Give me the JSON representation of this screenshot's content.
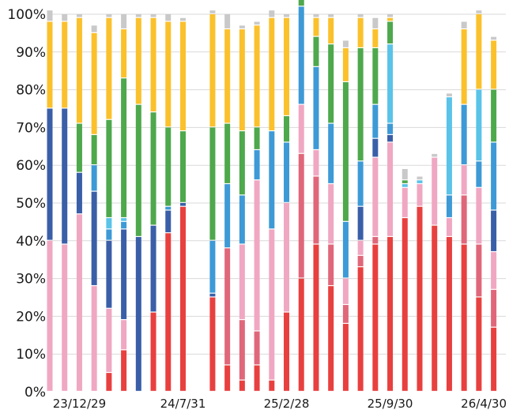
{
  "chart_data": {
    "type": "bar",
    "stacked": true,
    "normalized": true,
    "y_tick_labels": [
      "0%",
      "10%",
      "20%",
      "30%",
      "40%",
      "50%",
      "60%",
      "70%",
      "80%",
      "90%",
      "100%"
    ],
    "ylim": [
      0,
      100
    ],
    "x_tick_labels": [
      "23/12/29",
      "24/7/31",
      "25/2/28",
      "25/9/30",
      "26/4/30"
    ],
    "x_tick_bar_index": [
      2,
      9,
      16,
      23,
      30
    ],
    "grid": "horizontal",
    "legend": "none",
    "bar_count": 32,
    "series": [
      {
        "color": "#e8403f",
        "values": [
          0,
          0,
          0,
          0,
          5,
          11,
          0,
          21,
          42,
          49,
          0,
          25,
          7,
          3,
          7,
          3,
          21,
          30,
          39,
          28,
          18,
          33,
          39,
          41,
          46,
          49,
          44,
          41,
          39,
          25,
          17,
          0
        ]
      },
      {
        "color": "#e0677a",
        "values": [
          0,
          0,
          0,
          0,
          0,
          0,
          0,
          0,
          0,
          0,
          0,
          0,
          31,
          16,
          9,
          0,
          0,
          33,
          18,
          11,
          5,
          3,
          2,
          0,
          0,
          0,
          0,
          0,
          13,
          14,
          10,
          0
        ]
      },
      {
        "color": "#f0a7c2",
        "values": [
          40,
          39,
          47,
          28,
          17,
          8,
          0,
          0,
          0,
          0,
          0,
          0,
          0,
          20,
          40,
          40,
          29,
          13,
          7,
          16,
          7,
          4,
          21,
          25,
          8,
          6,
          18,
          5,
          8,
          15,
          10,
          0
        ]
      },
      {
        "color": "#3a5fa8",
        "values": [
          35,
          36,
          11,
          25,
          18,
          24,
          41,
          23,
          6,
          1,
          0,
          1,
          0,
          0,
          0,
          0,
          0,
          0,
          0,
          0,
          0,
          9,
          5,
          2,
          0,
          0,
          0,
          0,
          0,
          0,
          11,
          0
        ]
      },
      {
        "color": "#3d9ad6",
        "values": [
          0,
          0,
          0,
          7,
          3,
          2,
          0,
          0,
          1,
          0,
          0,
          14,
          17,
          13,
          8,
          26,
          16,
          26,
          22,
          16,
          15,
          12,
          9,
          3,
          0,
          0,
          0,
          6,
          16,
          7,
          18,
          0
        ]
      },
      {
        "color": "#5ac3e8",
        "values": [
          0,
          0,
          0,
          0,
          3,
          1,
          0,
          0,
          0,
          0,
          0,
          0,
          0,
          0,
          0,
          0,
          0,
          0,
          0,
          0,
          0,
          0,
          0,
          21,
          1,
          1,
          0,
          26,
          0,
          19,
          0,
          0
        ]
      },
      {
        "color": "#4ea84c",
        "values": [
          0,
          0,
          13,
          8,
          26,
          37,
          35,
          30,
          21,
          19,
          0,
          30,
          16,
          17,
          6,
          0,
          7,
          4,
          8,
          21,
          37,
          30,
          15,
          6,
          1,
          0,
          0,
          0,
          0,
          0,
          14,
          0
        ]
      },
      {
        "color": "#fbc12c",
        "values": [
          23,
          23,
          28,
          27,
          27,
          13,
          23,
          25,
          28,
          29,
          0,
          30,
          25,
          27,
          27,
          30,
          26,
          4,
          5,
          7,
          9,
          8,
          5,
          1,
          0,
          0,
          0,
          0,
          20,
          20,
          13,
          0
        ]
      },
      {
        "color": "#c9c9c9",
        "values": [
          3,
          2,
          1,
          2,
          1,
          4,
          1,
          1,
          2,
          1,
          0,
          1,
          4,
          1,
          1,
          2,
          1,
          1,
          1,
          1,
          2,
          1,
          3,
          1,
          3,
          1,
          1,
          1,
          2,
          1,
          1,
          0
        ]
      }
    ]
  }
}
